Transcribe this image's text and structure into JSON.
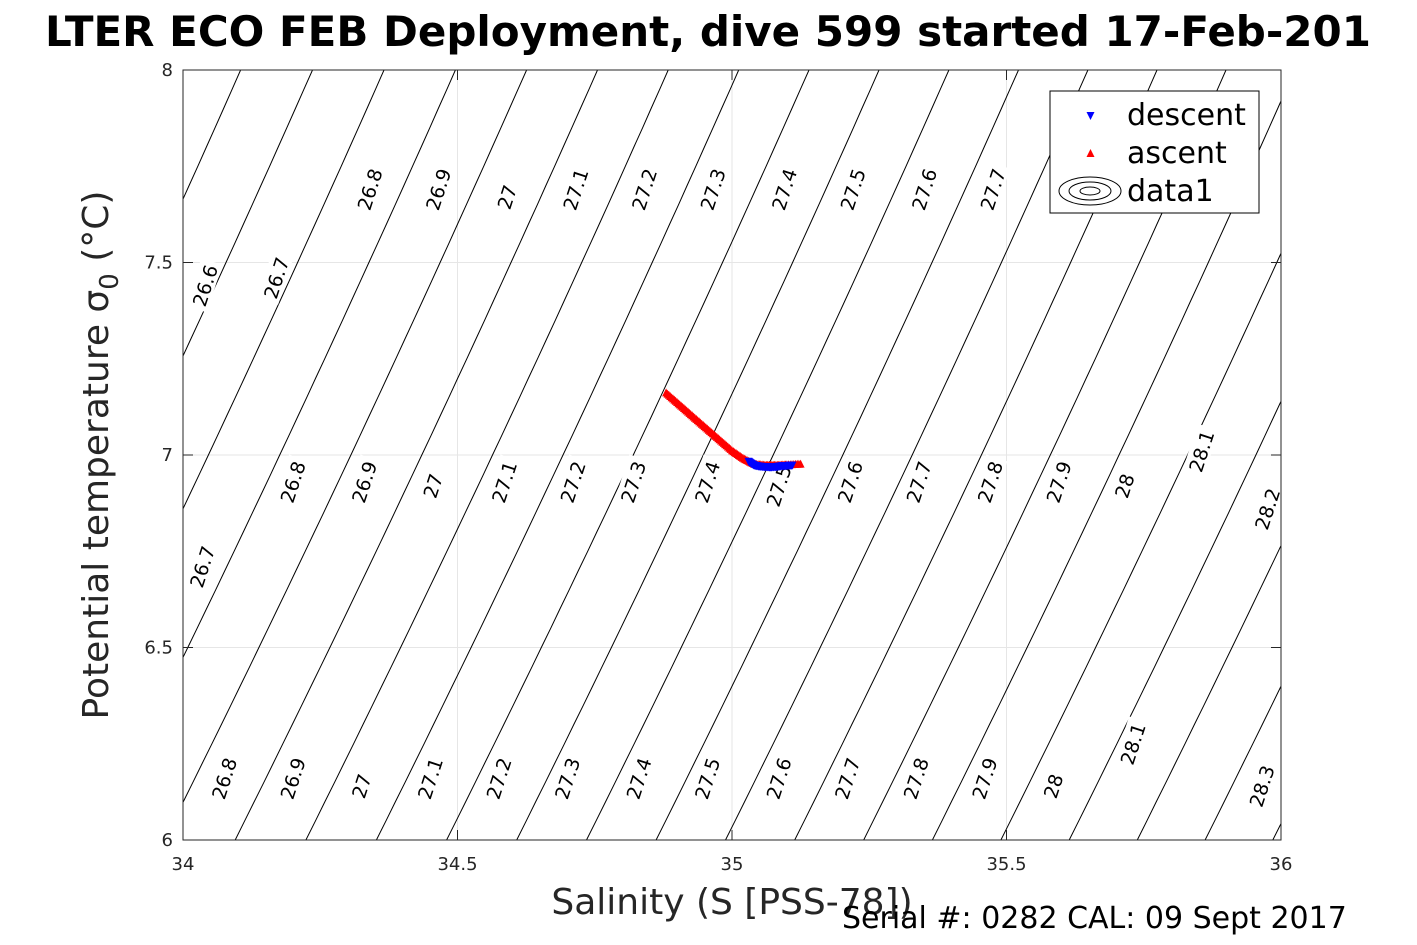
{
  "title": "LTER ECO FEB Deployment, dive 599 started 17-Feb-201",
  "footer": "Serial #: 0282  CAL: 09 Sept 2017",
  "chart_data": {
    "type": "scatter",
    "xlabel": "Salinity (S [PSS-78])",
    "ylabel": "Potential temperature σ",
    "ylabel_subscript": "0",
    "ylabel_unit": " (°C)",
    "xlim": [
      34,
      36
    ],
    "ylim": [
      6,
      8
    ],
    "xticks": [
      34,
      34.5,
      35,
      35.5,
      36
    ],
    "xtick_labels": [
      "34",
      "34.5",
      "35",
      "35.5",
      "36"
    ],
    "yticks": [
      6,
      6.5,
      7,
      7.5,
      8
    ],
    "ytick_labels": [
      "6",
      "6.5",
      "7",
      "7.5",
      "8"
    ],
    "grid": true,
    "legend_position": "top-right",
    "legend": [
      {
        "label": "descent",
        "marker": "triangle-down",
        "color": "#0000ff"
      },
      {
        "label": "ascent",
        "marker": "triangle-up",
        "color": "#ff0000"
      },
      {
        "label": "data1",
        "marker": "contour",
        "color": "#000000"
      }
    ],
    "series": [
      {
        "name": "descent",
        "marker": "triangle-down",
        "color": "#0000ff",
        "x": [
          35.03,
          35.04,
          35.05,
          35.06,
          35.07,
          35.08,
          35.09,
          35.1,
          35.11
        ],
        "y": [
          6.985,
          6.975,
          6.972,
          6.971,
          6.97,
          6.971,
          6.973,
          6.974,
          6.975
        ]
      },
      {
        "name": "ascent",
        "marker": "triangle-up",
        "color": "#ff0000",
        "x": [
          34.88,
          34.9,
          34.92,
          34.94,
          34.96,
          34.98,
          35.0,
          35.02,
          35.04,
          35.06,
          35.08,
          35.1,
          35.125
        ],
        "y": [
          7.16,
          7.135,
          7.11,
          7.085,
          7.06,
          7.035,
          7.01,
          6.99,
          6.975,
          6.972,
          6.972,
          6.973,
          6.975
        ]
      }
    ],
    "contours": {
      "color": "#000000",
      "levels": [
        26.6,
        26.7,
        26.8,
        26.9,
        27,
        27.1,
        27.2,
        27.3,
        27.4,
        27.5,
        27.6,
        27.7,
        27.8,
        27.9,
        28,
        28.1,
        28.2,
        28.3
      ],
      "labels": [
        {
          "text": "26.6",
          "x": 34.04,
          "y": 7.44
        },
        {
          "text": "26.7",
          "x": 34.17,
          "y": 7.46
        },
        {
          "text": "26.8",
          "x": 34.34,
          "y": 7.69
        },
        {
          "text": "26.9",
          "x": 34.465,
          "y": 7.69
        },
        {
          "text": "27",
          "x": 34.59,
          "y": 7.67
        },
        {
          "text": "27.1",
          "x": 34.715,
          "y": 7.69
        },
        {
          "text": "27.2",
          "x": 34.84,
          "y": 7.69
        },
        {
          "text": "27.3",
          "x": 34.965,
          "y": 7.69
        },
        {
          "text": "27.4",
          "x": 35.095,
          "y": 7.69
        },
        {
          "text": "27.5",
          "x": 35.22,
          "y": 7.69
        },
        {
          "text": "27.6",
          "x": 35.35,
          "y": 7.69
        },
        {
          "text": "27.7",
          "x": 35.475,
          "y": 7.69
        },
        {
          "text": "26.7",
          "x": 34.035,
          "y": 6.71
        },
        {
          "text": "26.8",
          "x": 34.2,
          "y": 6.93
        },
        {
          "text": "26.9",
          "x": 34.33,
          "y": 6.93
        },
        {
          "text": "27",
          "x": 34.455,
          "y": 6.92
        },
        {
          "text": "27.1",
          "x": 34.585,
          "y": 6.93
        },
        {
          "text": "27.2",
          "x": 34.71,
          "y": 6.93
        },
        {
          "text": "27.3",
          "x": 34.82,
          "y": 6.93
        },
        {
          "text": "27.4",
          "x": 34.955,
          "y": 6.93
        },
        {
          "text": "27.5",
          "x": 35.085,
          "y": 6.92
        },
        {
          "text": "27.6",
          "x": 35.215,
          "y": 6.93
        },
        {
          "text": "27.7",
          "x": 35.34,
          "y": 6.93
        },
        {
          "text": "27.8",
          "x": 35.47,
          "y": 6.93
        },
        {
          "text": "27.9",
          "x": 35.595,
          "y": 6.93
        },
        {
          "text": "28",
          "x": 35.715,
          "y": 6.92
        },
        {
          "text": "28.1",
          "x": 35.855,
          "y": 7.01
        },
        {
          "text": "28.2",
          "x": 35.975,
          "y": 6.86
        },
        {
          "text": "26.8",
          "x": 34.075,
          "y": 6.16
        },
        {
          "text": "26.9",
          "x": 34.2,
          "y": 6.16
        },
        {
          "text": "27",
          "x": 34.325,
          "y": 6.14
        },
        {
          "text": "27.1",
          "x": 34.45,
          "y": 6.16
        },
        {
          "text": "27.2",
          "x": 34.575,
          "y": 6.16
        },
        {
          "text": "27.3",
          "x": 34.7,
          "y": 6.16
        },
        {
          "text": "27.4",
          "x": 34.83,
          "y": 6.16
        },
        {
          "text": "27.5",
          "x": 34.955,
          "y": 6.16
        },
        {
          "text": "27.6",
          "x": 35.085,
          "y": 6.16
        },
        {
          "text": "27.7",
          "x": 35.21,
          "y": 6.16
        },
        {
          "text": "27.8",
          "x": 35.335,
          "y": 6.16
        },
        {
          "text": "27.9",
          "x": 35.46,
          "y": 6.16
        },
        {
          "text": "28",
          "x": 35.585,
          "y": 6.14
        },
        {
          "text": "28.1",
          "x": 35.73,
          "y": 6.25
        },
        {
          "text": "28.3",
          "x": 35.965,
          "y": 6.14
        }
      ]
    }
  }
}
